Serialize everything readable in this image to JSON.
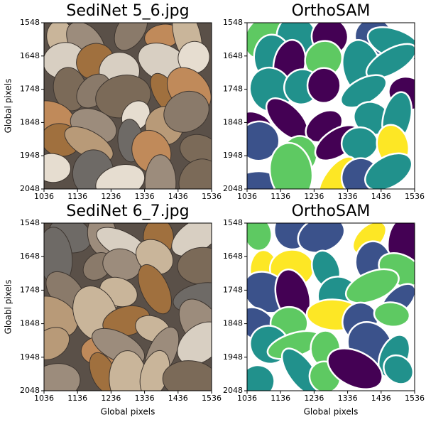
{
  "chart_data": [
    {
      "type": "image",
      "title": "SediNet 5_6.jpg",
      "ylabel": "Global pixels",
      "photo": true,
      "xlim": [
        1036,
        1536
      ],
      "ylim": [
        2048,
        1548
      ],
      "xticks": [
        1036,
        1136,
        1236,
        1336,
        1436,
        1536
      ],
      "yticks": [
        1548,
        1648,
        1748,
        1848,
        1948,
        2048
      ]
    },
    {
      "type": "image",
      "title": "OrthoSAM",
      "photo": false,
      "xlim": [
        1036,
        1536
      ],
      "ylim": [
        2048,
        1548
      ],
      "xticks": [
        1036,
        1136,
        1236,
        1336,
        1436,
        1536
      ],
      "yticks": [
        1548,
        1648,
        1748,
        1848,
        1948,
        2048
      ]
    },
    {
      "type": "image",
      "title": "SediNet 6_7.jpg",
      "ylabel": "Gloabl pixels",
      "xlabel": "Global pixels",
      "photo": true,
      "xlim": [
        1036,
        1536
      ],
      "ylim": [
        2048,
        1548
      ],
      "xticks": [
        1036,
        1136,
        1236,
        1336,
        1436,
        1536
      ],
      "yticks": [
        1548,
        1648,
        1748,
        1848,
        1948,
        2048
      ]
    },
    {
      "type": "image",
      "title": "OrthoSAM",
      "xlabel": "Global pixels",
      "photo": false,
      "xlim": [
        1036,
        1536
      ],
      "ylim": [
        2048,
        1548
      ],
      "xticks": [
        1036,
        1136,
        1236,
        1336,
        1436,
        1536
      ],
      "yticks": [
        1548,
        1648,
        1748,
        1848,
        1948,
        2048
      ]
    }
  ]
}
